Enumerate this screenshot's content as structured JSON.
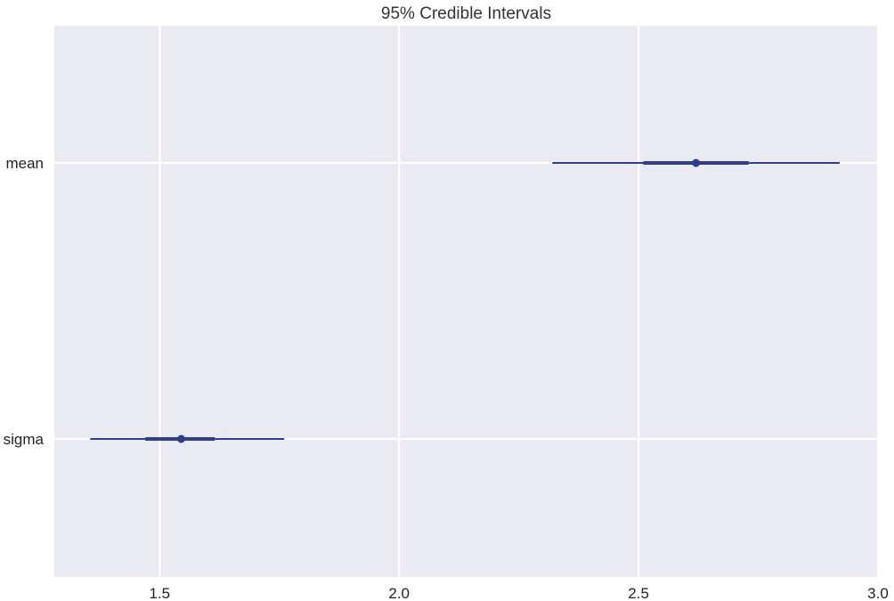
{
  "chart_data": {
    "type": "forest",
    "title": "95% Credible Intervals",
    "xlabel": "",
    "ylabel": "",
    "xlim": [
      1.28,
      3.0
    ],
    "xticks": [
      "1.5",
      "2.0",
      "2.5",
      "3.0"
    ],
    "grid": true,
    "series": [
      {
        "name": "mean",
        "median": 2.62,
        "hdi_50": [
          2.51,
          2.73
        ],
        "hdi_95": [
          2.32,
          2.92
        ]
      },
      {
        "name": "sigma",
        "median": 1.545,
        "hdi_50": [
          1.47,
          1.615
        ],
        "hdi_95": [
          1.355,
          1.76
        ]
      }
    ],
    "colors": {
      "background": "#eaeaf2",
      "grid": "#ffffff",
      "interval": "#2f3e8f"
    }
  }
}
